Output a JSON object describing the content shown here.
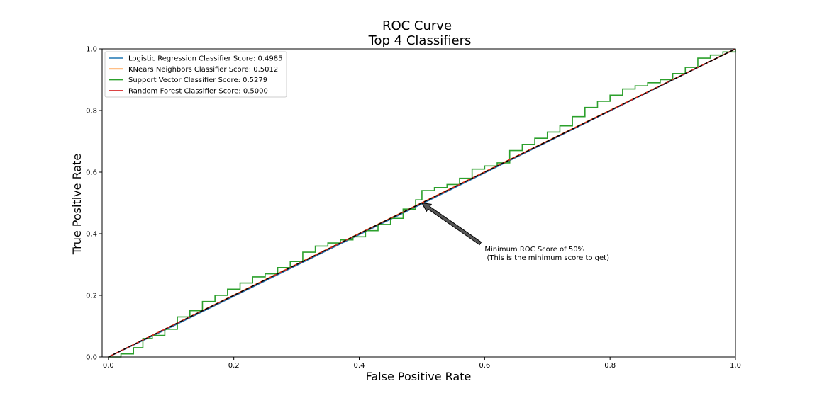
{
  "chart_data": {
    "type": "line",
    "title": "ROC Curve",
    "subtitle": "Top 4 Classifiers",
    "xlabel": "False Positive Rate",
    "ylabel": "True Positive Rate",
    "xlim": [
      -0.01,
      1.0
    ],
    "ylim": [
      0.0,
      1.0
    ],
    "xticks": [
      "0.0",
      "0.2",
      "0.4",
      "0.6",
      "0.8",
      "1.0"
    ],
    "yticks": [
      "0.0",
      "0.2",
      "0.4",
      "0.6",
      "0.8",
      "1.0"
    ],
    "grid": false,
    "legend_position": "top-left",
    "series": [
      {
        "name": "Logistic Regression Classifier Score: 0.4985",
        "color": "#1f77b4",
        "step": false,
        "x": [
          0.0,
          0.1,
          0.3,
          0.5,
          0.7,
          0.9,
          1.0
        ],
        "y": [
          0.0,
          0.097,
          0.297,
          0.497,
          0.698,
          0.899,
          1.0
        ]
      },
      {
        "name": "KNears Neighbors Classifier Score: 0.5012",
        "color": "#ff7f0e",
        "step": false,
        "x": [
          0.0,
          0.25,
          0.5,
          0.75,
          1.0
        ],
        "y": [
          0.0,
          0.251,
          0.501,
          0.751,
          1.0
        ]
      },
      {
        "name": "Support Vector Classifier Score: 0.5279",
        "color": "#2ca02c",
        "step": true,
        "x": [
          0.0,
          0.02,
          0.04,
          0.055,
          0.07,
          0.09,
          0.11,
          0.13,
          0.15,
          0.17,
          0.19,
          0.21,
          0.23,
          0.25,
          0.27,
          0.29,
          0.31,
          0.33,
          0.35,
          0.37,
          0.39,
          0.41,
          0.43,
          0.45,
          0.47,
          0.49,
          0.5,
          0.52,
          0.54,
          0.56,
          0.58,
          0.6,
          0.62,
          0.64,
          0.66,
          0.68,
          0.7,
          0.72,
          0.74,
          0.76,
          0.78,
          0.8,
          0.82,
          0.84,
          0.86,
          0.88,
          0.9,
          0.92,
          0.94,
          0.96,
          0.98,
          1.0
        ],
        "y": [
          0.0,
          0.01,
          0.03,
          0.06,
          0.07,
          0.09,
          0.13,
          0.15,
          0.18,
          0.2,
          0.22,
          0.24,
          0.26,
          0.27,
          0.29,
          0.31,
          0.34,
          0.36,
          0.37,
          0.38,
          0.39,
          0.41,
          0.43,
          0.45,
          0.48,
          0.51,
          0.54,
          0.55,
          0.56,
          0.58,
          0.61,
          0.62,
          0.63,
          0.67,
          0.69,
          0.71,
          0.73,
          0.75,
          0.78,
          0.81,
          0.83,
          0.85,
          0.87,
          0.88,
          0.89,
          0.9,
          0.92,
          0.94,
          0.97,
          0.98,
          0.99,
          1.0
        ]
      },
      {
        "name": "Random Forest Classifier Score: 0.5000",
        "color": "#d62728",
        "step": false,
        "x": [
          0.0,
          1.0
        ],
        "y": [
          0.0,
          1.0
        ]
      }
    ],
    "reference_line": {
      "x": [
        0.0,
        1.0
      ],
      "y": [
        0.0,
        1.0
      ],
      "color": "#000000",
      "style": "dashed"
    },
    "annotation": {
      "line1": "Minimum ROC Score of 50%",
      "line2": " (This is the minimum score to get)",
      "point": [
        0.5,
        0.5
      ],
      "text_at": [
        0.6,
        0.35
      ],
      "arrow_color": "#555555"
    }
  }
}
